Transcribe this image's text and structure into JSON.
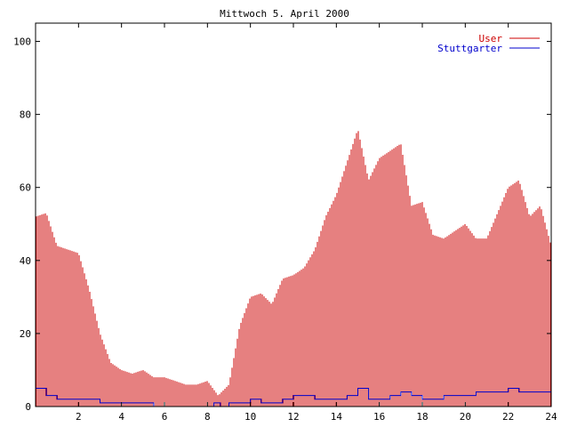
{
  "chart_data": {
    "type": "bar",
    "title": "Mittwoch 5. April 2000",
    "xlabel": "",
    "ylabel": "",
    "xlim": [
      0,
      24
    ],
    "ylim": [
      0,
      105
    ],
    "x_ticks": [
      2,
      4,
      6,
      8,
      10,
      12,
      14,
      16,
      18,
      20,
      22,
      24
    ],
    "y_ticks": [
      0,
      20,
      40,
      60,
      80,
      100
    ],
    "legend_position": "top-right",
    "series": [
      {
        "name": "User",
        "kind": "bar",
        "color": "#cc0000",
        "x": [
          0.0,
          0.5,
          1.0,
          1.5,
          2.0,
          2.5,
          3.0,
          3.5,
          4.0,
          4.5,
          5.0,
          5.5,
          6.0,
          6.5,
          7.0,
          7.5,
          8.0,
          8.5,
          9.0,
          9.5,
          10.0,
          10.5,
          11.0,
          11.5,
          12.0,
          12.5,
          13.0,
          13.5,
          14.0,
          14.5,
          15.0,
          15.5,
          16.0,
          16.5,
          17.0,
          17.5,
          18.0,
          18.5,
          19.0,
          19.5,
          20.0,
          20.5,
          21.0,
          21.5,
          22.0,
          22.5,
          23.0,
          23.5,
          24.0
        ],
        "values": [
          52,
          53,
          44,
          43,
          42,
          32,
          20,
          12,
          10,
          9,
          10,
          8,
          8,
          7,
          6,
          6,
          7,
          3,
          6,
          22,
          30,
          31,
          28,
          35,
          36,
          38,
          43,
          52,
          58,
          67,
          76,
          62,
          68,
          70,
          72,
          55,
          56,
          47,
          46,
          48,
          50,
          46,
          46,
          53,
          60,
          62,
          52,
          55,
          44
        ]
      },
      {
        "name": "Stuttgarter",
        "kind": "line",
        "color": "#0000cc",
        "x": [
          0.0,
          0.5,
          1.0,
          2.0,
          2.5,
          3.0,
          4.0,
          5.0,
          5.5,
          6.0,
          7.0,
          8.0,
          8.3,
          8.6,
          9.0,
          9.5,
          10.0,
          10.5,
          11.0,
          11.5,
          12.0,
          12.5,
          13.0,
          13.5,
          14.0,
          14.5,
          15.0,
          15.3,
          15.5,
          16.0,
          16.5,
          17.0,
          17.5,
          18.0,
          18.5,
          19.0,
          19.5,
          20.0,
          20.5,
          21.0,
          21.5,
          22.0,
          22.5,
          23.0,
          23.5,
          24.0
        ],
        "values": [
          5,
          3,
          2,
          2,
          2,
          1,
          1,
          1,
          0,
          0,
          0,
          0,
          1,
          0,
          1,
          1,
          2,
          1,
          1,
          2,
          3,
          3,
          2,
          2,
          2,
          3,
          5,
          5,
          2,
          2,
          3,
          4,
          3,
          2,
          2,
          3,
          3,
          3,
          4,
          4,
          4,
          5,
          4,
          4,
          4,
          4
        ]
      }
    ]
  }
}
